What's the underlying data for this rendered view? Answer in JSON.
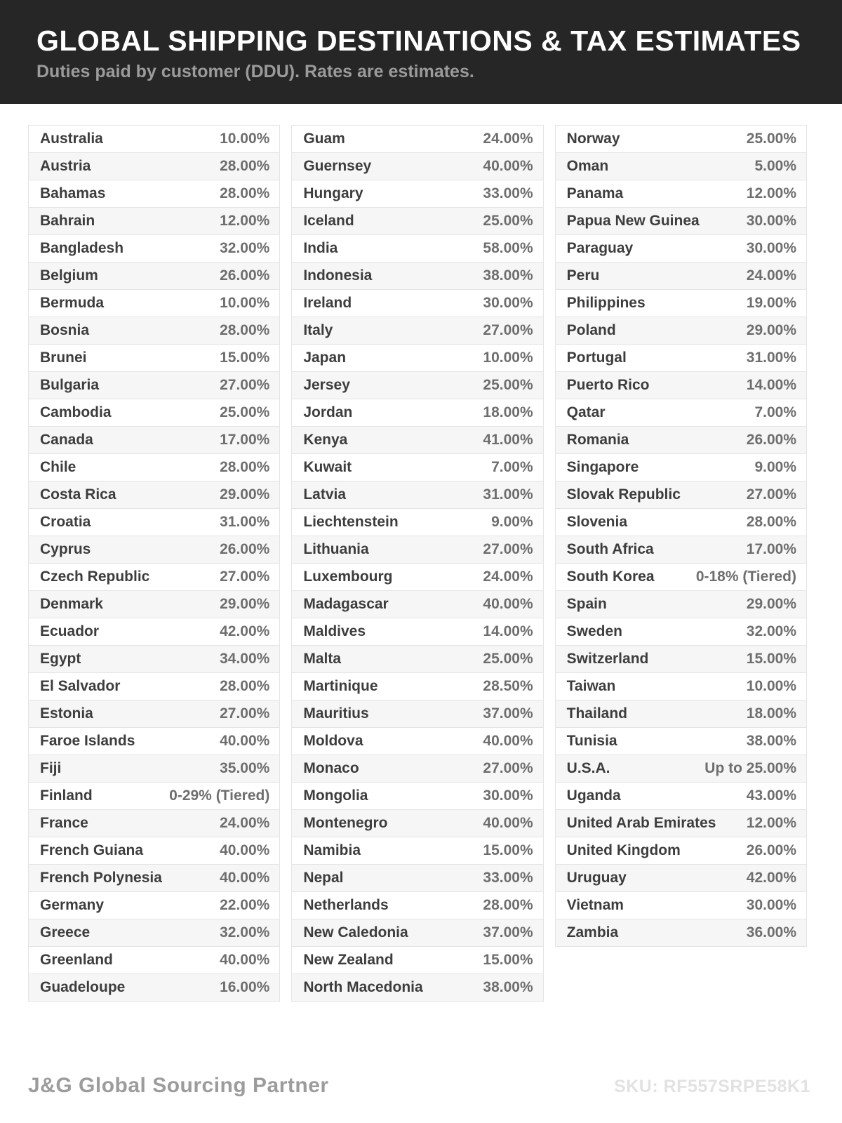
{
  "header": {
    "title": "GLOBAL SHIPPING DESTINATIONS & TAX ESTIMATES",
    "subtitle": "Duties paid by customer (DDU). Rates are estimates."
  },
  "table": {
    "columns": [
      {
        "rows": [
          {
            "country": "Australia",
            "rate": "10.00%"
          },
          {
            "country": "Austria",
            "rate": "28.00%"
          },
          {
            "country": "Bahamas",
            "rate": "28.00%"
          },
          {
            "country": "Bahrain",
            "rate": "12.00%"
          },
          {
            "country": "Bangladesh",
            "rate": "32.00%"
          },
          {
            "country": "Belgium",
            "rate": "26.00%"
          },
          {
            "country": "Bermuda",
            "rate": "10.00%"
          },
          {
            "country": "Bosnia",
            "rate": "28.00%"
          },
          {
            "country": "Brunei",
            "rate": "15.00%"
          },
          {
            "country": "Bulgaria",
            "rate": "27.00%"
          },
          {
            "country": "Cambodia",
            "rate": "25.00%"
          },
          {
            "country": "Canada",
            "rate": "17.00%"
          },
          {
            "country": "Chile",
            "rate": "28.00%"
          },
          {
            "country": "Costa Rica",
            "rate": "29.00%"
          },
          {
            "country": "Croatia",
            "rate": "31.00%"
          },
          {
            "country": "Cyprus",
            "rate": "26.00%"
          },
          {
            "country": "Czech Republic",
            "rate": "27.00%"
          },
          {
            "country": "Denmark",
            "rate": "29.00%"
          },
          {
            "country": "Ecuador",
            "rate": "42.00%"
          },
          {
            "country": "Egypt",
            "rate": "34.00%"
          },
          {
            "country": "El Salvador",
            "rate": "28.00%"
          },
          {
            "country": "Estonia",
            "rate": "27.00%"
          },
          {
            "country": "Faroe Islands",
            "rate": "40.00%"
          },
          {
            "country": "Fiji",
            "rate": "35.00%"
          },
          {
            "country": "Finland",
            "rate": "0-29% (Tiered)"
          },
          {
            "country": "France",
            "rate": "24.00%"
          },
          {
            "country": "French Guiana",
            "rate": "40.00%"
          },
          {
            "country": "French Polynesia",
            "rate": "40.00%"
          },
          {
            "country": "Germany",
            "rate": "22.00%"
          },
          {
            "country": "Greece",
            "rate": "32.00%"
          },
          {
            "country": "Greenland",
            "rate": "40.00%"
          },
          {
            "country": "Guadeloupe",
            "rate": "16.00%"
          }
        ]
      },
      {
        "rows": [
          {
            "country": "Guam",
            "rate": "24.00%"
          },
          {
            "country": "Guernsey",
            "rate": "40.00%"
          },
          {
            "country": "Hungary",
            "rate": "33.00%"
          },
          {
            "country": "Iceland",
            "rate": "25.00%"
          },
          {
            "country": "India",
            "rate": "58.00%"
          },
          {
            "country": "Indonesia",
            "rate": "38.00%"
          },
          {
            "country": "Ireland",
            "rate": "30.00%"
          },
          {
            "country": "Italy",
            "rate": "27.00%"
          },
          {
            "country": "Japan",
            "rate": "10.00%"
          },
          {
            "country": "Jersey",
            "rate": "25.00%"
          },
          {
            "country": "Jordan",
            "rate": "18.00%"
          },
          {
            "country": "Kenya",
            "rate": "41.00%"
          },
          {
            "country": "Kuwait",
            "rate": "7.00%"
          },
          {
            "country": "Latvia",
            "rate": "31.00%"
          },
          {
            "country": "Liechtenstein",
            "rate": "9.00%"
          },
          {
            "country": "Lithuania",
            "rate": "27.00%"
          },
          {
            "country": "Luxembourg",
            "rate": "24.00%"
          },
          {
            "country": "Madagascar",
            "rate": "40.00%"
          },
          {
            "country": "Maldives",
            "rate": "14.00%"
          },
          {
            "country": "Malta",
            "rate": "25.00%"
          },
          {
            "country": "Martinique",
            "rate": "28.50%"
          },
          {
            "country": "Mauritius",
            "rate": "37.00%"
          },
          {
            "country": "Moldova",
            "rate": "40.00%"
          },
          {
            "country": "Monaco",
            "rate": "27.00%"
          },
          {
            "country": "Mongolia",
            "rate": "30.00%"
          },
          {
            "country": "Montenegro",
            "rate": "40.00%"
          },
          {
            "country": "Namibia",
            "rate": "15.00%"
          },
          {
            "country": "Nepal",
            "rate": "33.00%"
          },
          {
            "country": "Netherlands",
            "rate": "28.00%"
          },
          {
            "country": "New Caledonia",
            "rate": "37.00%"
          },
          {
            "country": "New Zealand",
            "rate": "15.00%"
          },
          {
            "country": "North Macedonia",
            "rate": "38.00%"
          }
        ]
      },
      {
        "rows": [
          {
            "country": "Norway",
            "rate": "25.00%"
          },
          {
            "country": "Oman",
            "rate": "5.00%"
          },
          {
            "country": "Panama",
            "rate": "12.00%"
          },
          {
            "country": "Papua New Guinea",
            "rate": "30.00%"
          },
          {
            "country": "Paraguay",
            "rate": "30.00%"
          },
          {
            "country": "Peru",
            "rate": "24.00%"
          },
          {
            "country": "Philippines",
            "rate": "19.00%"
          },
          {
            "country": "Poland",
            "rate": "29.00%"
          },
          {
            "country": "Portugal",
            "rate": "31.00%"
          },
          {
            "country": "Puerto Rico",
            "rate": "14.00%"
          },
          {
            "country": "Qatar",
            "rate": "7.00%"
          },
          {
            "country": "Romania",
            "rate": "26.00%"
          },
          {
            "country": "Singapore",
            "rate": "9.00%"
          },
          {
            "country": "Slovak Republic",
            "rate": "27.00%"
          },
          {
            "country": "Slovenia",
            "rate": "28.00%"
          },
          {
            "country": "South Africa",
            "rate": "17.00%"
          },
          {
            "country": "South Korea",
            "rate": "0-18% (Tiered)"
          },
          {
            "country": "Spain",
            "rate": "29.00%"
          },
          {
            "country": "Sweden",
            "rate": "32.00%"
          },
          {
            "country": "Switzerland",
            "rate": "15.00%"
          },
          {
            "country": "Taiwan",
            "rate": "10.00%"
          },
          {
            "country": "Thailand",
            "rate": "18.00%"
          },
          {
            "country": "Tunisia",
            "rate": "38.00%"
          },
          {
            "country": "U.S.A.",
            "rate": "Up to 25.00%"
          },
          {
            "country": "Uganda",
            "rate": "43.00%"
          },
          {
            "country": "United Arab Emirates",
            "rate": "12.00%"
          },
          {
            "country": "United Kingdom",
            "rate": "26.00%"
          },
          {
            "country": "Uruguay",
            "rate": "42.00%"
          },
          {
            "country": "Vietnam",
            "rate": "30.00%"
          },
          {
            "country": "Zambia",
            "rate": "36.00%"
          }
        ]
      }
    ]
  },
  "footer": {
    "brand": "J&G Global Sourcing Partner",
    "sku": "SKU: RF557SRPE58K1"
  },
  "colors": {
    "header_bg": "#262626",
    "title_text": "#ffffff",
    "subtitle_text": "#9b9b9b",
    "row_border": "#e4e4e4",
    "row_alt_bg": "#f6f6f6",
    "country_text": "#3d3d3d",
    "rate_text": "#6e6e6e",
    "brand_text": "#9c9c9c",
    "sku_text": "#e2e2e2"
  }
}
